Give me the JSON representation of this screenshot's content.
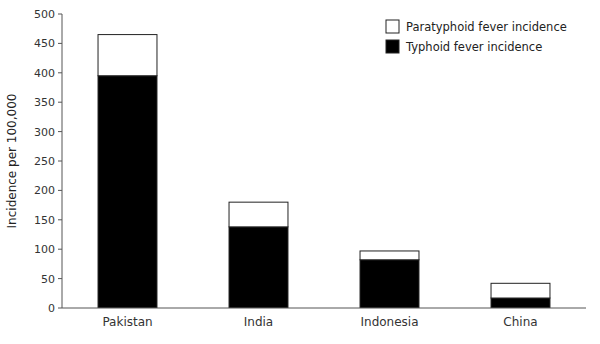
{
  "chart_data": {
    "type": "bar",
    "stacked": true,
    "categories": [
      "Pakistan",
      "India",
      "Indonesia",
      "China"
    ],
    "series": [
      {
        "name": "Typhoid fever incidence",
        "color": "#000000",
        "values": [
          395,
          138,
          82,
          17
        ]
      },
      {
        "name": "Paratyphoid fever incidence",
        "color": "#ffffff",
        "values": [
          70,
          42,
          15,
          25
        ]
      }
    ],
    "y_label": "Incidence per 100,000",
    "ylim": [
      0,
      500
    ],
    "yticks": [
      0,
      50,
      100,
      150,
      200,
      250,
      300,
      350,
      400,
      450,
      500
    ],
    "legend": "upper right"
  }
}
